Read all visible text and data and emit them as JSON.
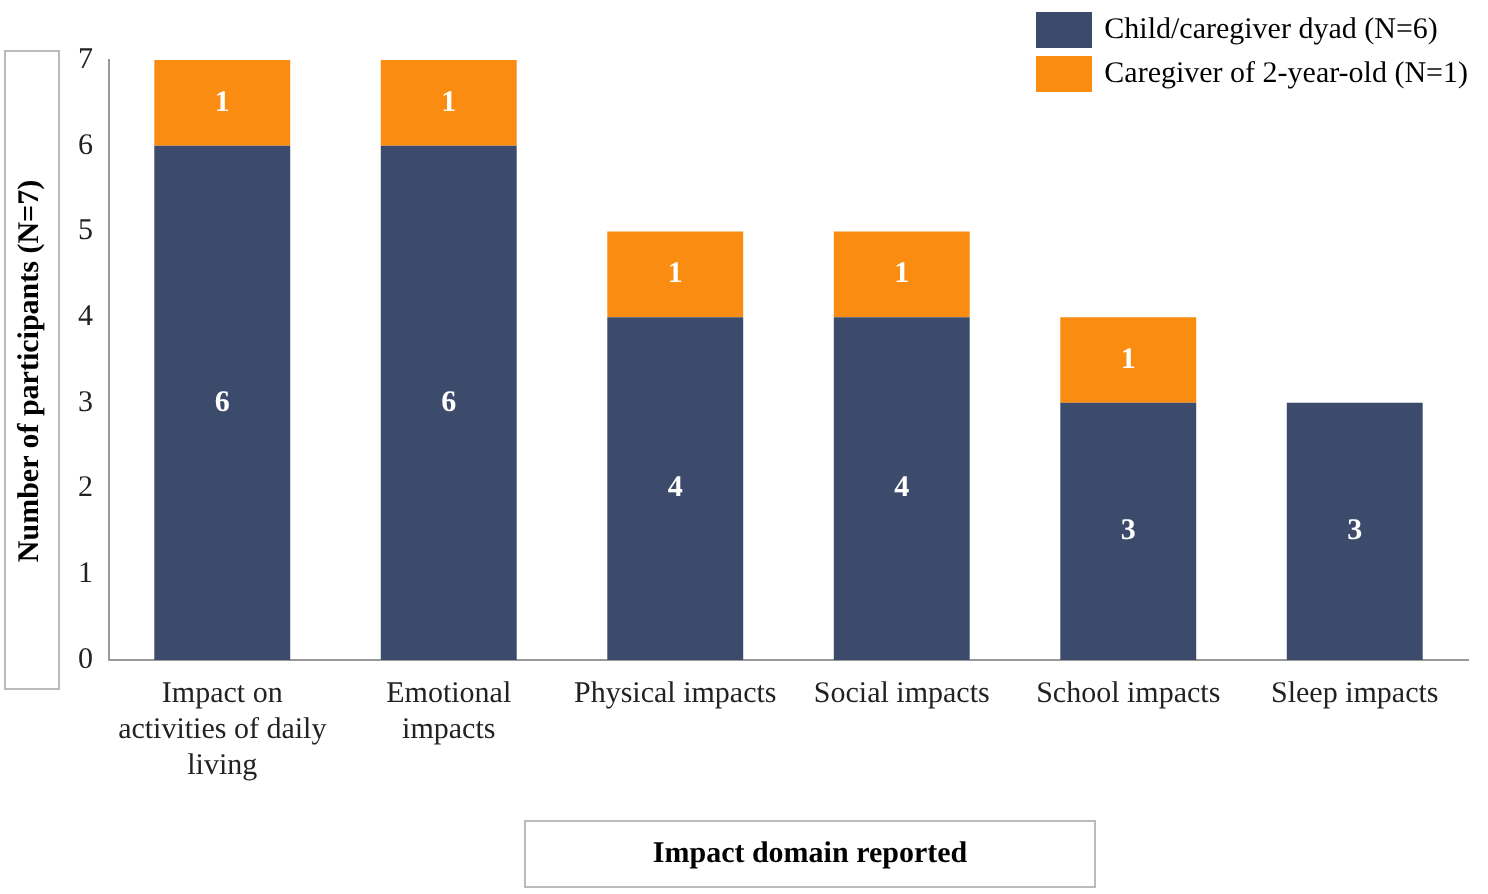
{
  "chart_data": {
    "type": "bar",
    "stacked": true,
    "xlabel": "Impact domain reported",
    "ylabel": "Number of participants (N=7)",
    "categories": [
      "Impact on activities of daily living",
      "Emotional impacts",
      "Physical impacts",
      "Social impacts",
      "School impacts",
      "Sleep impacts"
    ],
    "series": [
      {
        "name": "Child/caregiver dyad (N=6)",
        "color": "#3c4b6b",
        "values": [
          6,
          6,
          4,
          4,
          3,
          3
        ]
      },
      {
        "name": "Caregiver of 2-year-old (N=1)",
        "color": "#fb8c12",
        "values": [
          1,
          1,
          1,
          1,
          1,
          null
        ]
      }
    ],
    "ylim": [
      0,
      7
    ],
    "yticks": [
      0,
      1,
      2,
      3,
      4,
      5,
      6,
      7
    ],
    "grid": false,
    "legend": "top right",
    "data_labels": true
  }
}
